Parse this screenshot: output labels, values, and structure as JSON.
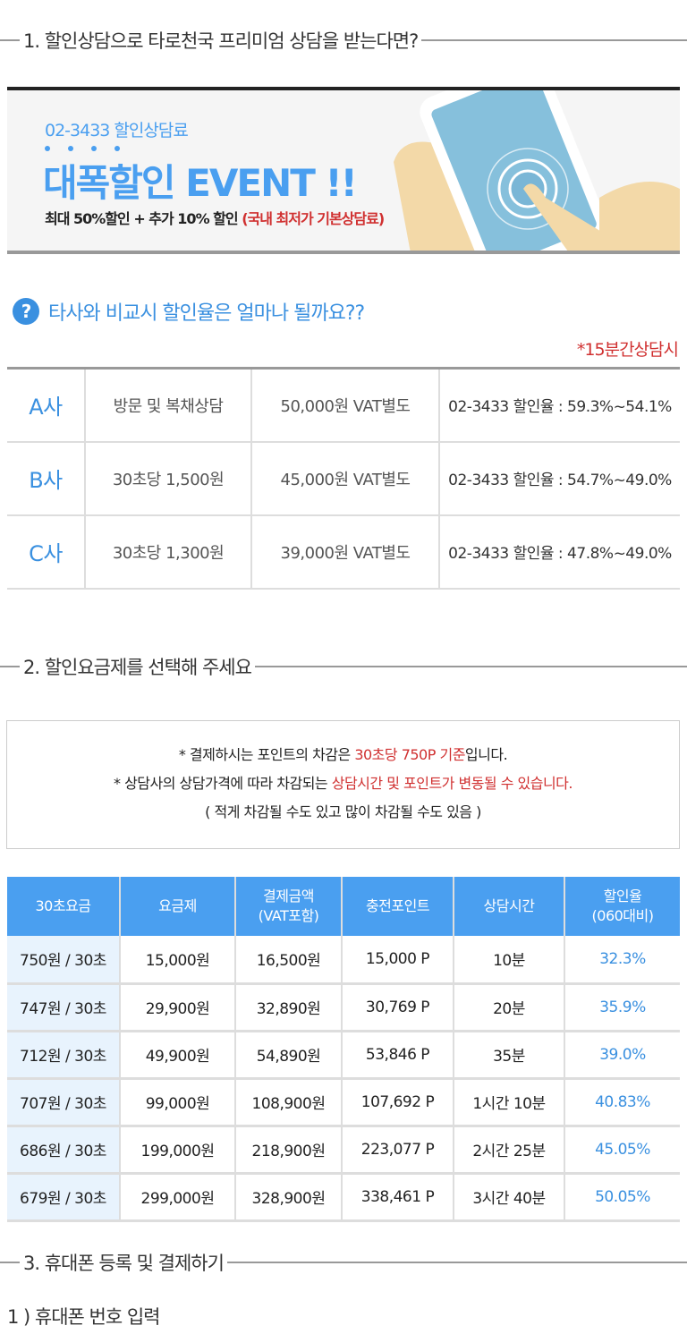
{
  "sections": {
    "s1": "1. 할인상담으로 타로천국 프리미엄 상담을 받는다면?",
    "s2": "2. 할인요금제를 선택해 주세요",
    "s3": "3. 휴대폰 등록 및 결제하기"
  },
  "banner": {
    "line1": "02-3433 할인상담료",
    "headline": "대폭할인 EVENT !!",
    "sub": "최대 50%할인 + 추가 10% 할인 ",
    "sub_red": "(국내 최저가 기본상담료)"
  },
  "question": {
    "icon": "question-circle-icon",
    "text": "타사와 비교시 할인율은 얼마나 될까요??",
    "note": "*15분간상담시"
  },
  "comparison": [
    [
      "A사",
      "방문 및 복채상담",
      "50,000원 VAT별도",
      "02-3433 할인율 : 59.3%~54.1%"
    ],
    [
      "B사",
      "30초당 1,500원",
      "45,000원 VAT별도",
      "02-3433 할인율 : 54.7%~49.0%"
    ],
    [
      "C사",
      "30초당 1,300원",
      "39,000원 VAT별도",
      "02-3433 할인율 : 47.8%~49.0%"
    ]
  ],
  "notice": {
    "l1a": "* 결제하시는 포인트의 차감은 ",
    "l1b": "30초당 750P 기준",
    "l1c": "입니다.",
    "l2a": "* 상담사의 상담가격에 따라 차감되는 ",
    "l2b": "상담시간 및 포인트가 변동될 수 있습니다.",
    "l3": "( 적게 차감될 수도 있고 많이 차감될 수도 있음 )"
  },
  "price_table": {
    "headers": [
      [
        "30초요금",
        ""
      ],
      [
        "요금제",
        ""
      ],
      [
        "결제금액",
        "(VAT포함)"
      ],
      [
        "충전포인트",
        ""
      ],
      [
        "상담시간",
        ""
      ],
      [
        "할인율",
        "(060대비)"
      ]
    ],
    "rows": [
      [
        "750원 / 30초",
        "15,000원",
        "16,500원",
        "15,000 P",
        "10분",
        "32.3%"
      ],
      [
        "747원 / 30초",
        "29,900원",
        "32,890원",
        "30,769 P",
        "20분",
        "35.9%"
      ],
      [
        "712원 / 30초",
        "49,900원",
        "54,890원",
        "53,846 P",
        "35분",
        "39.0%"
      ],
      [
        "707원 / 30초",
        "99,000원",
        "108,900원",
        "107,692 P",
        "1시간 10분",
        "40.83%"
      ],
      [
        "686원 / 30초",
        "199,000원",
        "218,900원",
        "223,077 P",
        "2시간 25분",
        "45.05%"
      ],
      [
        "679원 / 30초",
        "299,000원",
        "328,900원",
        "338,461 P",
        "3시간 40분",
        "50.05%"
      ]
    ]
  },
  "step1": "1 ) 휴대폰 번호 입력",
  "colors": {
    "accent": "#4a9ff0",
    "red": "#d03030"
  }
}
